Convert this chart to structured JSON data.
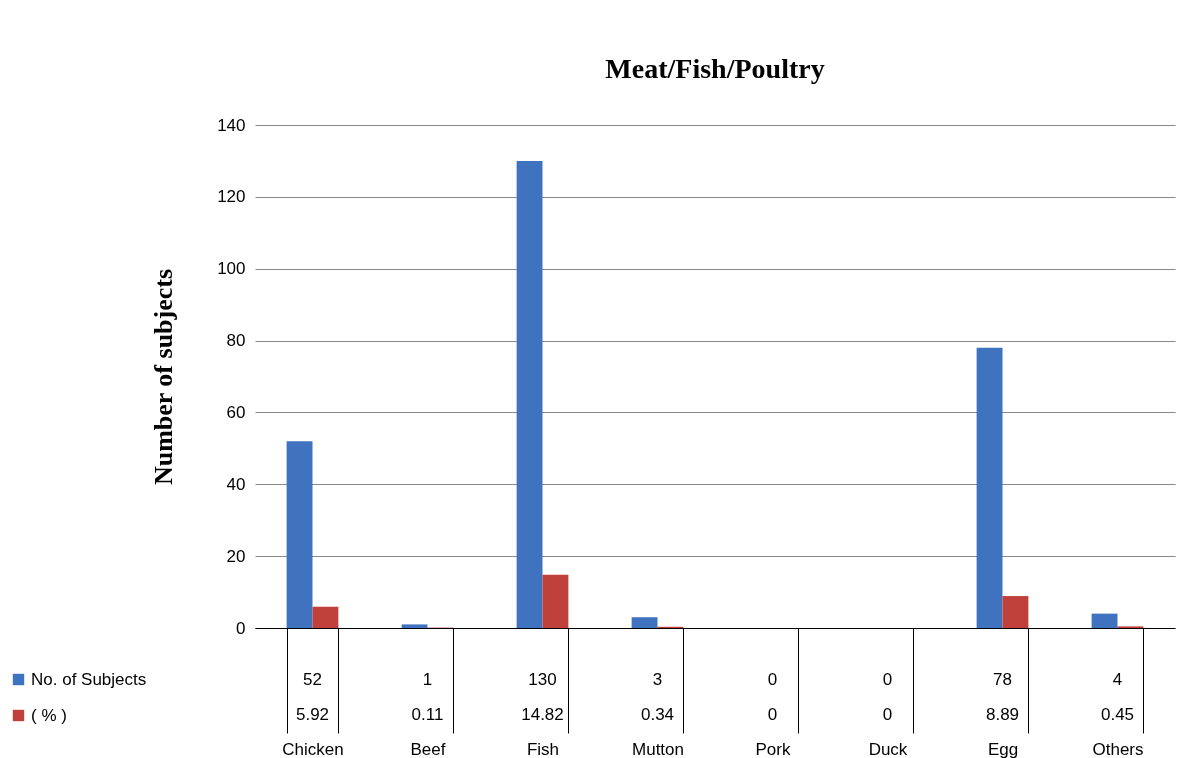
{
  "chart_data": {
    "type": "bar",
    "title": "Meat/Fish/Poultry",
    "ylabel": "Number of subjects",
    "categories": [
      "Chicken",
      "Beef",
      "Fish",
      "Mutton",
      "Pork",
      "Duck",
      "Egg",
      "Others"
    ],
    "series": [
      {
        "name": "No. of Subjects",
        "color": "#3f73bf",
        "values": [
          52,
          1,
          130,
          3,
          0,
          0,
          78,
          4
        ]
      },
      {
        "name": "( % )",
        "color": "#c0403c",
        "values": [
          5.92,
          0.11,
          14.82,
          0.34,
          0,
          0,
          8.89,
          0.45
        ]
      }
    ],
    "ylim": [
      0,
      140
    ],
    "yticks": [
      0,
      20,
      40,
      60,
      80,
      100,
      120,
      140
    ],
    "grid": "y",
    "legend": "bottom left",
    "data_labels": true
  }
}
